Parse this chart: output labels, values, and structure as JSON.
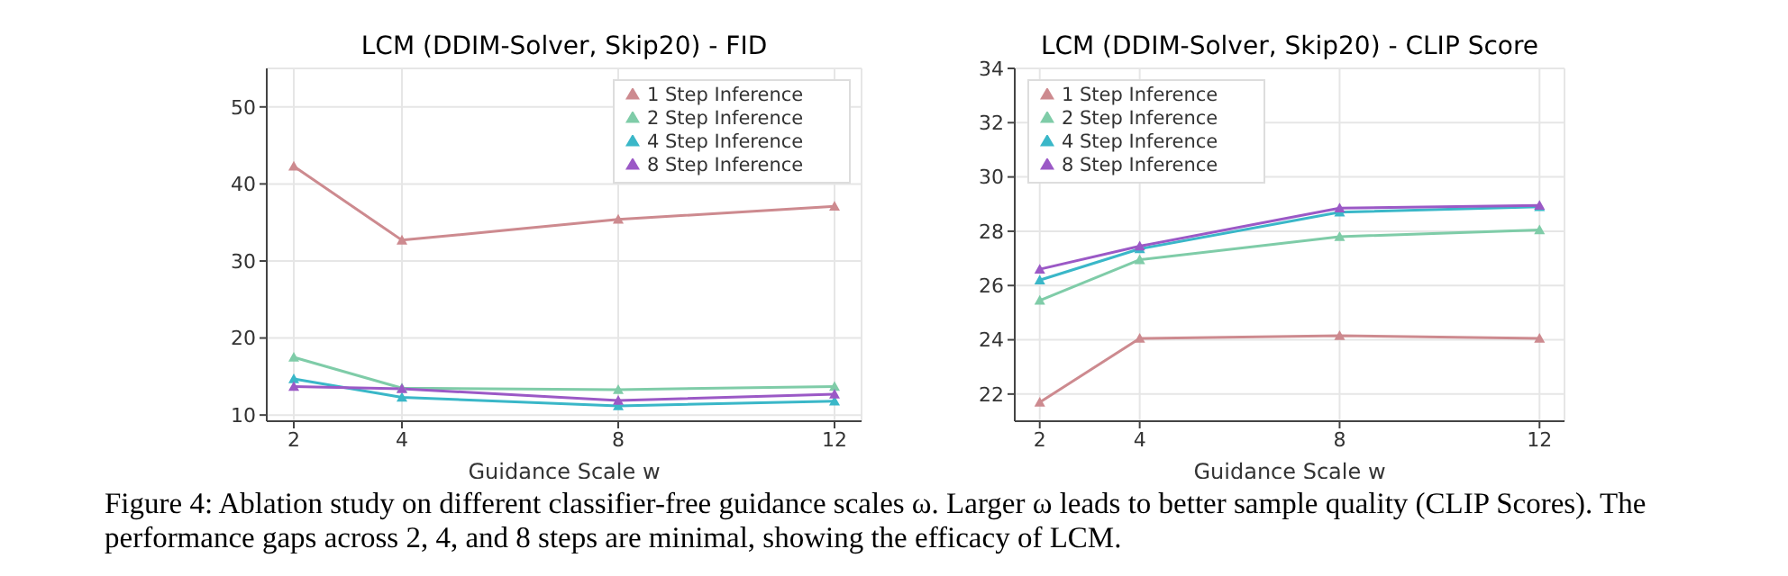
{
  "chart_data": [
    {
      "type": "line",
      "title": "LCM (DDIM-Solver, Skip20) - FID",
      "xlabel": "Guidance Scale w",
      "x": [
        2,
        4,
        8,
        12
      ],
      "xlim": [
        1.5,
        12.5
      ],
      "xticks": [
        2,
        4,
        8,
        12
      ],
      "ylim": [
        9.2,
        55
      ],
      "yticks": [
        10,
        20,
        30,
        40,
        50
      ],
      "grid": true,
      "legend": "top right",
      "marker": "triangle",
      "line_style": "solid",
      "series": [
        {
          "name": "1 Step Inference",
          "color": "#cd8a8f",
          "values": [
            42.3,
            32.7,
            35.4,
            37.1
          ]
        },
        {
          "name": "2 Step Inference",
          "color": "#7fcca8",
          "values": [
            17.5,
            13.5,
            13.3,
            13.7
          ]
        },
        {
          "name": "4 Step Inference",
          "color": "#3ab7c8",
          "values": [
            14.7,
            12.3,
            11.2,
            11.8
          ]
        },
        {
          "name": "8 Step Inference",
          "color": "#9b59c6",
          "values": [
            13.7,
            13.4,
            11.9,
            12.7
          ]
        }
      ],
      "annotations": [
        "Figure 4: Ablation study on different classifier-free guidance scales ω. Larger ω leads to better sample quality (CLIP Scores). The performance gaps across 2, 4, and 8 steps are minimal, showing the efficacy of LCM."
      ]
    },
    {
      "type": "line",
      "title": "LCM (DDIM-Solver, Skip20) - CLIP Score",
      "xlabel": "Guidance Scale w",
      "x": [
        2,
        4,
        8,
        12
      ],
      "xlim": [
        1.5,
        12.5
      ],
      "xticks": [
        2,
        4,
        8,
        12
      ],
      "ylim": [
        21,
        34
      ],
      "yticks": [
        22,
        24,
        26,
        28,
        30,
        32,
        34
      ],
      "grid": true,
      "legend": "top left",
      "marker": "triangle",
      "line_style": "solid",
      "series": [
        {
          "name": "1 Step Inference",
          "color": "#cd8a8f",
          "values": [
            21.7,
            24.05,
            24.15,
            24.05
          ]
        },
        {
          "name": "2 Step Inference",
          "color": "#7fcca8",
          "values": [
            25.45,
            26.95,
            27.8,
            28.05
          ]
        },
        {
          "name": "4 Step Inference",
          "color": "#3ab7c8",
          "values": [
            26.2,
            27.35,
            28.7,
            28.9
          ]
        },
        {
          "name": "8 Step Inference",
          "color": "#9b59c6",
          "values": [
            26.6,
            27.45,
            28.85,
            28.95
          ]
        }
      ]
    }
  ]
}
